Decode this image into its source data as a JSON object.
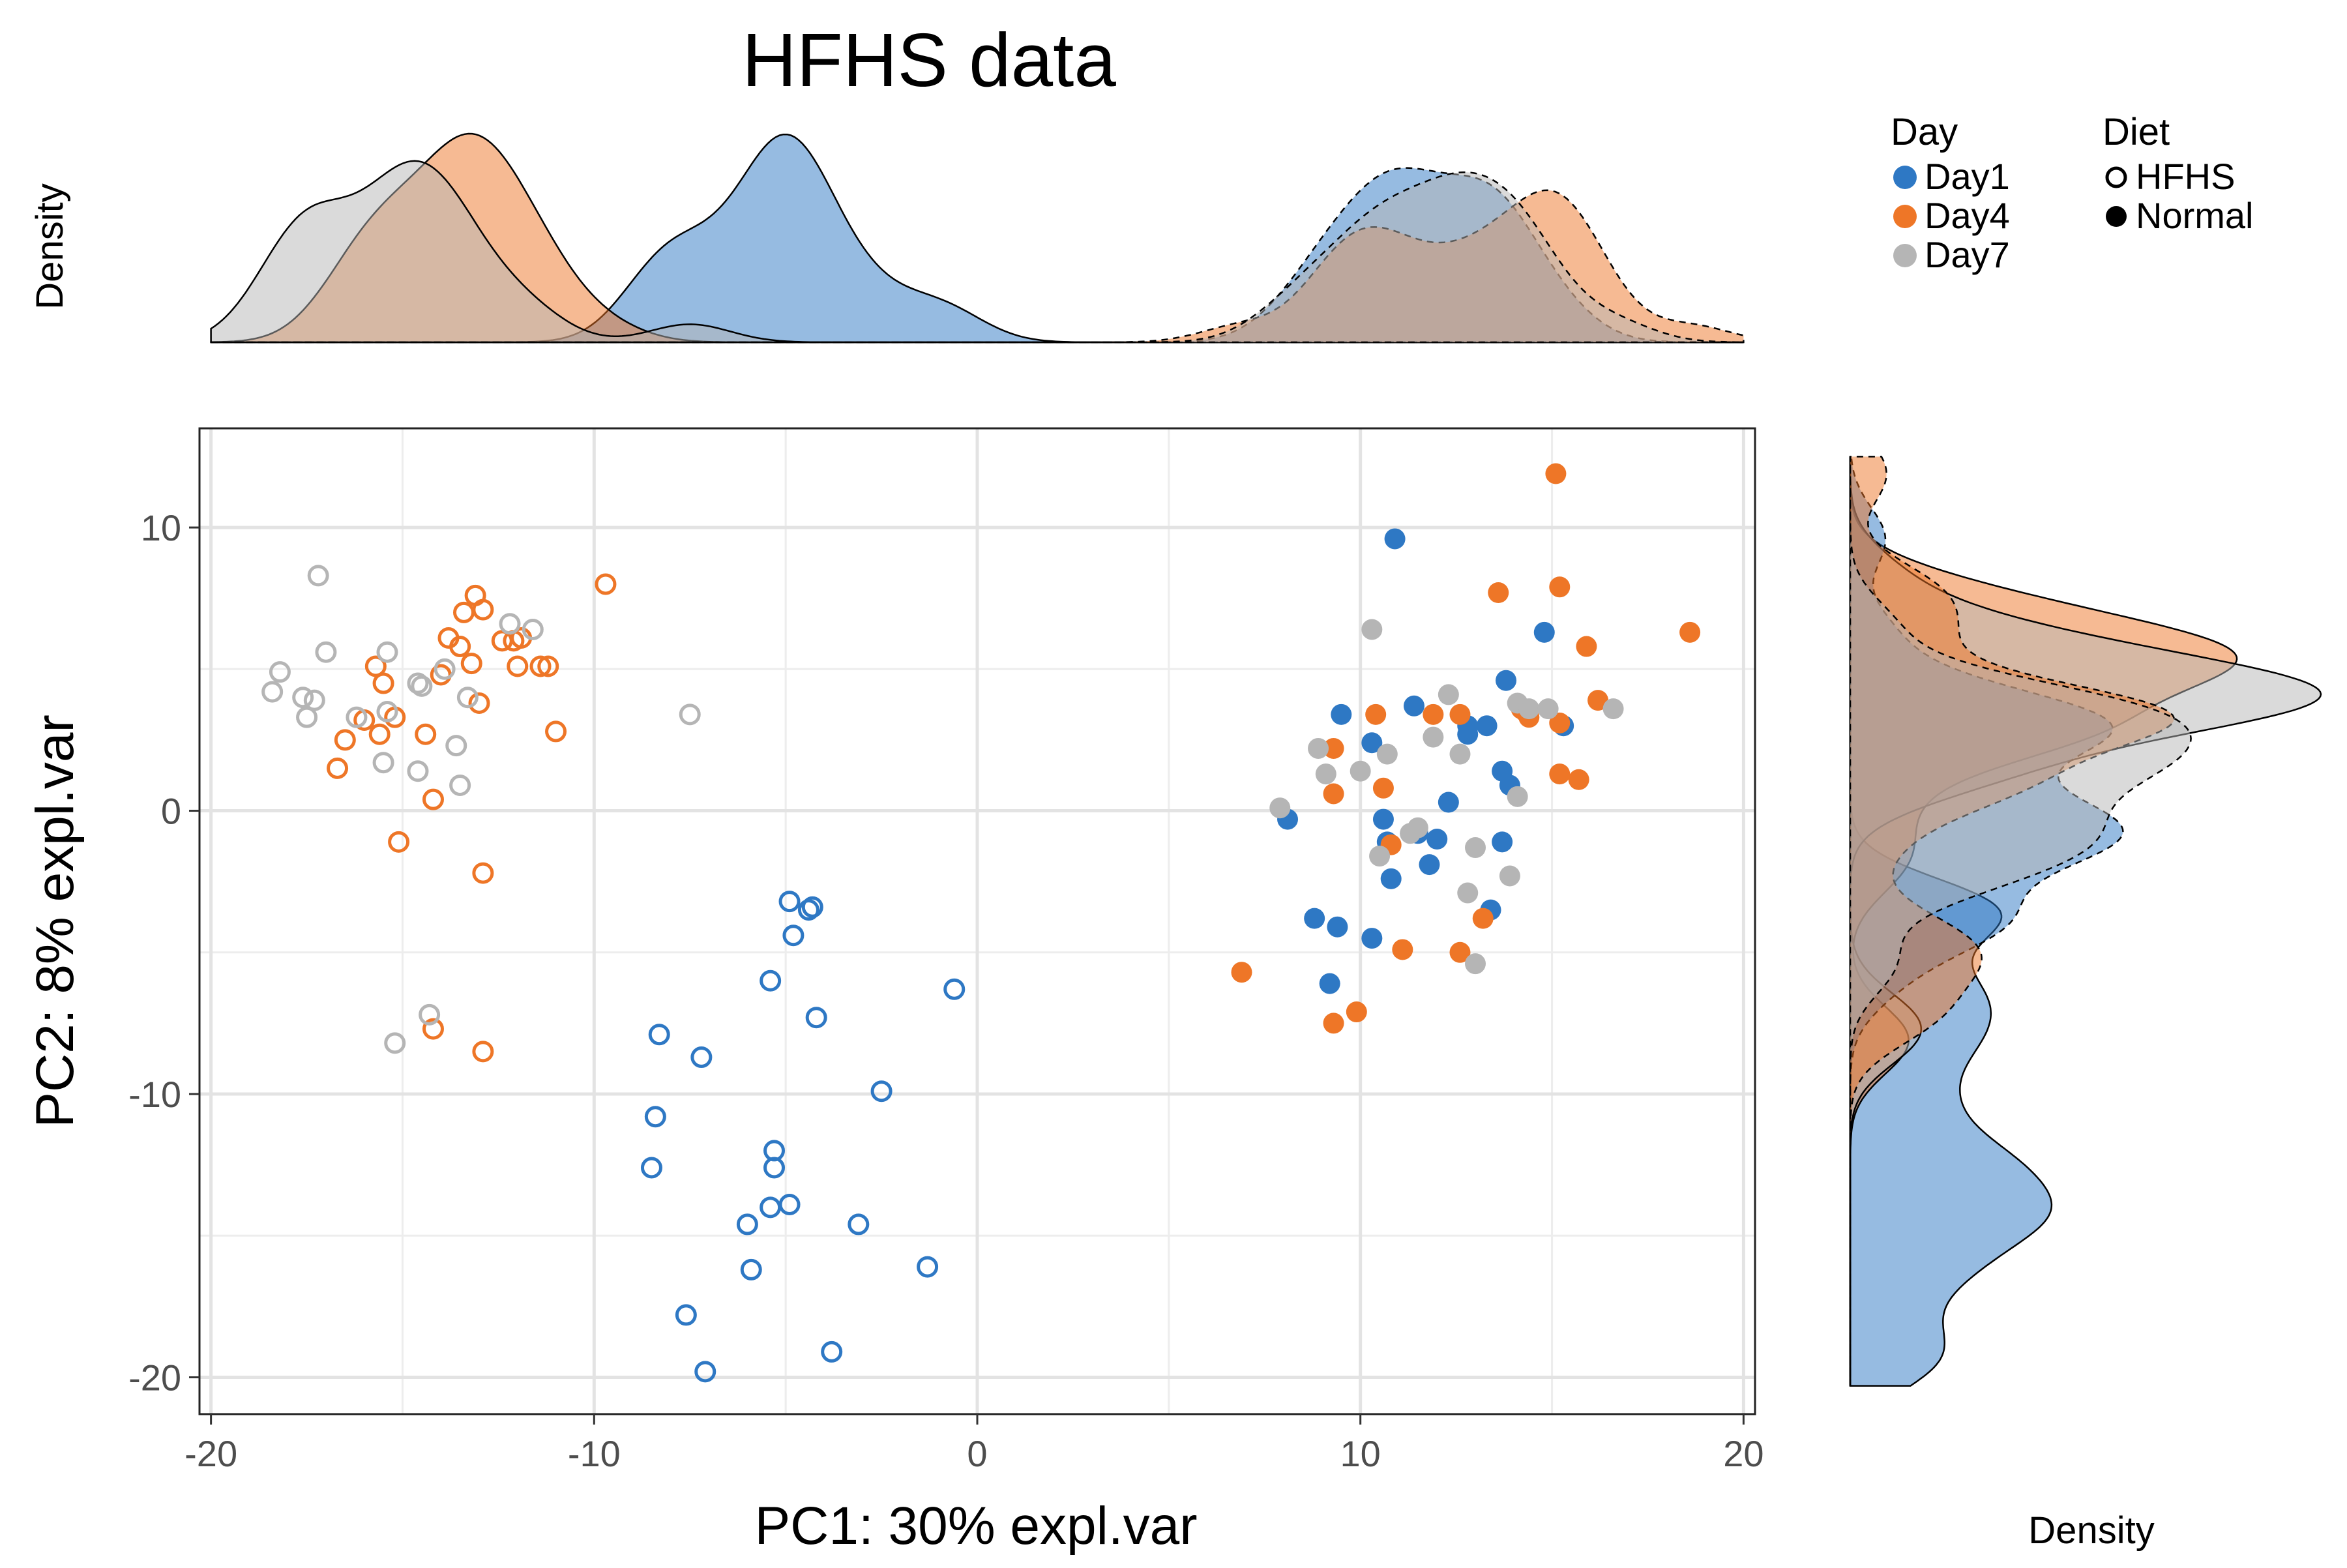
{
  "chart_data": {
    "type": "scatter",
    "title": "HFHS data",
    "xlabel": "PC1: 30% expl.var",
    "ylabel": "PC2: 8% expl.var",
    "xlim": [
      -20.3,
      20.3
    ],
    "ylim": [
      -21.3,
      13.5
    ],
    "x_ticks": [
      "-20",
      "-10",
      "0",
      "10",
      "20"
    ],
    "y_ticks": [
      "10",
      "0",
      "-10",
      "-20"
    ],
    "grid": true,
    "top_density_ylabel": "Density",
    "right_density_xlabel": "Density",
    "legend": {
      "placement": "top-right",
      "color_title": "Day",
      "color_entries": [
        {
          "label": "Day1",
          "color": "#2E78C4"
        },
        {
          "label": "Day4",
          "color": "#EE7627"
        },
        {
          "label": "Day7",
          "color": "#B5B5B5"
        }
      ],
      "shape_title": "Diet",
      "shape_entries": [
        {
          "label": "HFHS",
          "marker": "open-circle"
        },
        {
          "label": "Normal",
          "marker": "filled-circle"
        }
      ]
    },
    "series": [
      {
        "day": "Day1",
        "diet": "HFHS",
        "color": "#2E78C4",
        "filled": false,
        "points": [
          [
            -4.9,
            -3.2
          ],
          [
            -4.3,
            -3.4
          ],
          [
            -4.8,
            -4.4
          ],
          [
            -5.4,
            -6.0
          ],
          [
            -4.2,
            -7.3
          ],
          [
            -0.6,
            -6.3
          ],
          [
            -8.3,
            -7.9
          ],
          [
            -7.2,
            -8.7
          ],
          [
            -2.5,
            -9.9
          ],
          [
            -8.4,
            -10.8
          ],
          [
            -5.3,
            -12.0
          ],
          [
            -8.5,
            -12.6
          ],
          [
            -5.3,
            -12.6
          ],
          [
            -5.4,
            -14.0
          ],
          [
            -4.9,
            -13.9
          ],
          [
            -6.0,
            -14.6
          ],
          [
            -3.1,
            -14.6
          ],
          [
            -5.9,
            -16.2
          ],
          [
            -1.3,
            -16.1
          ],
          [
            -7.6,
            -17.8
          ],
          [
            -3.8,
            -19.1
          ],
          [
            -7.1,
            -19.8
          ],
          [
            -4.4,
            -3.5
          ]
        ]
      },
      {
        "day": "Day4",
        "diet": "HFHS",
        "color": "#EE7627",
        "filled": false,
        "points": [
          [
            -9.7,
            8.0
          ],
          [
            -13.1,
            7.6
          ],
          [
            -12.9,
            7.1
          ],
          [
            -13.4,
            7.0
          ],
          [
            -13.8,
            6.1
          ],
          [
            -12.4,
            6.0
          ],
          [
            -12.1,
            6.0
          ],
          [
            -11.9,
            6.1
          ],
          [
            -13.5,
            5.8
          ],
          [
            -13.2,
            5.2
          ],
          [
            -11.4,
            5.1
          ],
          [
            -11.2,
            5.1
          ],
          [
            -12.0,
            5.1
          ],
          [
            -15.7,
            5.1
          ],
          [
            -14.0,
            4.8
          ],
          [
            -15.5,
            4.5
          ],
          [
            -13.0,
            3.8
          ],
          [
            -15.2,
            3.3
          ],
          [
            -16.0,
            3.2
          ],
          [
            -16.5,
            2.5
          ],
          [
            -15.6,
            2.7
          ],
          [
            -14.4,
            2.7
          ],
          [
            -11.0,
            2.8
          ],
          [
            -16.7,
            1.5
          ],
          [
            -14.2,
            0.4
          ],
          [
            -15.1,
            -1.1
          ],
          [
            -12.9,
            -2.2
          ],
          [
            -14.2,
            -7.7
          ],
          [
            -12.9,
            -8.5
          ]
        ]
      },
      {
        "day": "Day7",
        "diet": "HFHS",
        "color": "#B5B5B5",
        "filled": false,
        "points": [
          [
            -17.2,
            8.3
          ],
          [
            -17.0,
            5.6
          ],
          [
            -15.4,
            5.6
          ],
          [
            -18.2,
            4.9
          ],
          [
            -17.6,
            4.0
          ],
          [
            -17.3,
            3.9
          ],
          [
            -18.4,
            4.2
          ],
          [
            -17.5,
            3.3
          ],
          [
            -16.2,
            3.3
          ],
          [
            -15.4,
            3.5
          ],
          [
            -14.5,
            4.4
          ],
          [
            -14.6,
            4.5
          ],
          [
            -13.3,
            4.0
          ],
          [
            -12.2,
            6.6
          ],
          [
            -11.6,
            6.4
          ],
          [
            -13.9,
            5.0
          ],
          [
            -13.6,
            2.3
          ],
          [
            -15.5,
            1.7
          ],
          [
            -14.6,
            1.4
          ],
          [
            -13.5,
            0.9
          ],
          [
            -7.5,
            3.4
          ],
          [
            -14.3,
            -7.2
          ],
          [
            -15.2,
            -8.2
          ]
        ]
      },
      {
        "day": "Day1",
        "diet": "Normal",
        "color": "#2E78C4",
        "filled": true,
        "points": [
          [
            10.9,
            9.6
          ],
          [
            14.8,
            6.3
          ],
          [
            13.8,
            4.6
          ],
          [
            11.4,
            3.7
          ],
          [
            9.5,
            3.4
          ],
          [
            12.8,
            3.0
          ],
          [
            13.3,
            3.0
          ],
          [
            15.3,
            3.0
          ],
          [
            10.3,
            2.4
          ],
          [
            13.7,
            1.4
          ],
          [
            13.9,
            0.9
          ],
          [
            12.3,
            0.3
          ],
          [
            10.6,
            -0.3
          ],
          [
            8.1,
            -0.3
          ],
          [
            11.5,
            -0.8
          ],
          [
            12.0,
            -1.0
          ],
          [
            13.7,
            -1.1
          ],
          [
            10.7,
            -1.1
          ],
          [
            11.8,
            -1.9
          ],
          [
            10.8,
            -2.4
          ],
          [
            13.4,
            -3.5
          ],
          [
            8.8,
            -3.8
          ],
          [
            9.4,
            -4.1
          ],
          [
            10.3,
            -4.5
          ],
          [
            9.2,
            -6.1
          ],
          [
            12.8,
            2.7
          ]
        ]
      },
      {
        "day": "Day4",
        "diet": "Normal",
        "color": "#EE7627",
        "filled": true,
        "points": [
          [
            15.1,
            11.9
          ],
          [
            15.2,
            7.9
          ],
          [
            13.6,
            7.7
          ],
          [
            18.6,
            6.3
          ],
          [
            15.9,
            5.8
          ],
          [
            16.2,
            3.9
          ],
          [
            10.4,
            3.4
          ],
          [
            11.9,
            3.4
          ],
          [
            12.6,
            3.4
          ],
          [
            14.3,
            3.5
          ],
          [
            14.4,
            3.3
          ],
          [
            15.2,
            3.1
          ],
          [
            9.3,
            2.2
          ],
          [
            15.2,
            1.3
          ],
          [
            15.7,
            1.1
          ],
          [
            9.3,
            0.6
          ],
          [
            10.6,
            0.8
          ],
          [
            10.8,
            -1.2
          ],
          [
            6.9,
            -5.7
          ],
          [
            11.1,
            -4.9
          ],
          [
            12.6,
            -5.0
          ],
          [
            13.2,
            -3.8
          ],
          [
            9.9,
            -7.1
          ],
          [
            9.3,
            -7.5
          ],
          [
            14.2,
            3.6
          ]
        ]
      },
      {
        "day": "Day7",
        "diet": "Normal",
        "color": "#B5B5B5",
        "filled": true,
        "points": [
          [
            10.3,
            6.4
          ],
          [
            12.3,
            4.1
          ],
          [
            14.1,
            3.8
          ],
          [
            14.4,
            3.6
          ],
          [
            14.9,
            3.6
          ],
          [
            16.6,
            3.6
          ],
          [
            11.9,
            2.6
          ],
          [
            12.6,
            2.0
          ],
          [
            8.9,
            2.2
          ],
          [
            10.7,
            2.0
          ],
          [
            9.1,
            1.3
          ],
          [
            10.0,
            1.4
          ],
          [
            14.1,
            0.5
          ],
          [
            7.9,
            0.1
          ],
          [
            11.5,
            -0.6
          ],
          [
            11.3,
            -0.8
          ],
          [
            13.0,
            -1.3
          ],
          [
            10.5,
            -1.6
          ],
          [
            13.9,
            -2.3
          ],
          [
            12.8,
            -2.9
          ],
          [
            13.0,
            -5.4
          ]
        ]
      }
    ]
  }
}
